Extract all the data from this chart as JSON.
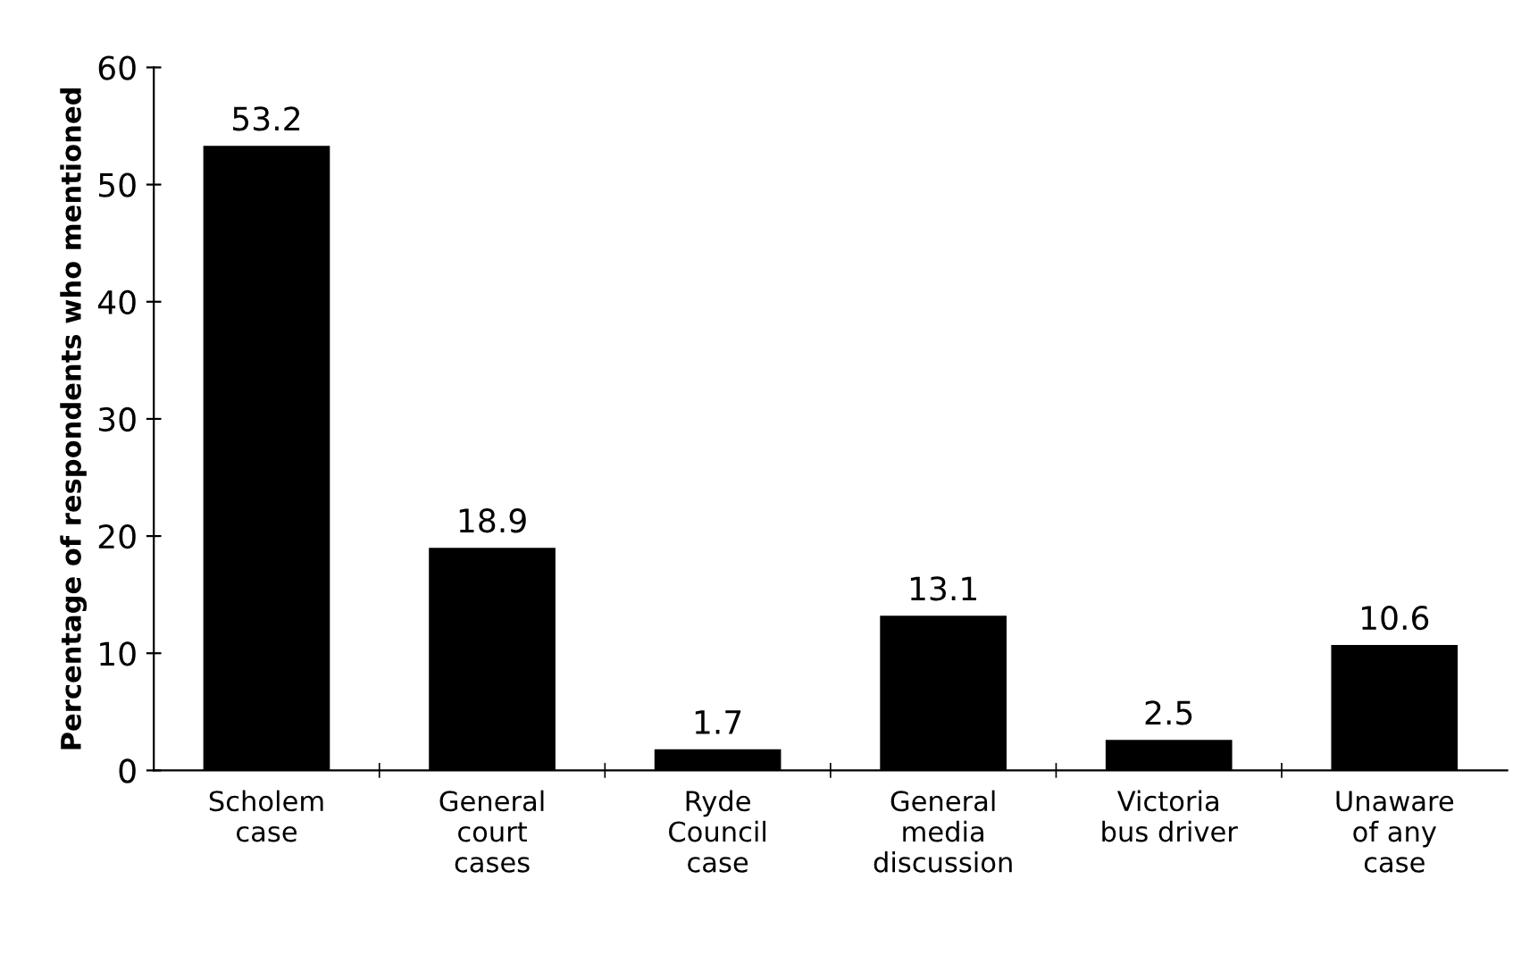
{
  "chart_data": {
    "type": "bar",
    "ylabel": "Percentage of respondents who mentioned",
    "categories": [
      "Scholem\ncase",
      "General\ncourt\ncases",
      "Ryde\nCouncil\ncase",
      "General\nmedia\ndiscussion",
      "Victoria\nbus driver",
      "Unaware\nof any\ncase"
    ],
    "values": [
      53.2,
      18.9,
      1.7,
      13.1,
      2.5,
      10.6
    ],
    "color": "#000000",
    "ylim": [
      0,
      60
    ],
    "yticks": [
      0,
      10,
      20,
      30,
      40,
      50,
      60
    ],
    "data_labels": true,
    "grid": false
  }
}
